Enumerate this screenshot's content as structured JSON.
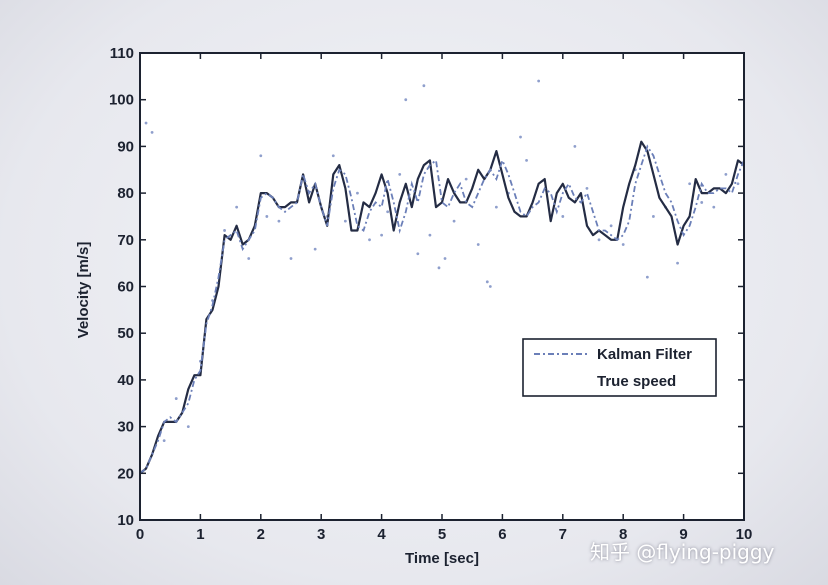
{
  "watermark": "知乎 @flying-piggy",
  "chart_data": {
    "type": "line",
    "title": "",
    "xlabel": "Time [sec]",
    "ylabel": "Velocity [m/s]",
    "xlim": [
      0,
      10
    ],
    "ylim": [
      10,
      110
    ],
    "xticks": [
      0,
      1,
      2,
      3,
      4,
      5,
      6,
      7,
      8,
      9,
      10
    ],
    "yticks": [
      10,
      20,
      30,
      40,
      50,
      60,
      70,
      80,
      90,
      100,
      110
    ],
    "grid": false,
    "legend_position": "center-right",
    "colors": {
      "kalman": "#6b7fb8",
      "true_speed": "#242c44",
      "measurements": "#8f9fcc",
      "frame": "#1c2230"
    },
    "series": [
      {
        "name": "Kalman Filter",
        "style": "dash-dot",
        "x": [
          0,
          0.1,
          0.2,
          0.3,
          0.4,
          0.5,
          0.6,
          0.7,
          0.8,
          0.9,
          1.0,
          1.1,
          1.2,
          1.3,
          1.4,
          1.5,
          1.6,
          1.7,
          1.8,
          1.9,
          2.0,
          2.1,
          2.2,
          2.3,
          2.4,
          2.5,
          2.6,
          2.7,
          2.8,
          2.9,
          3.0,
          3.1,
          3.2,
          3.3,
          3.4,
          3.5,
          3.6,
          3.7,
          3.8,
          3.9,
          4.0,
          4.1,
          4.2,
          4.3,
          4.4,
          4.5,
          4.6,
          4.7,
          4.8,
          4.9,
          5.0,
          5.1,
          5.2,
          5.3,
          5.4,
          5.5,
          5.6,
          5.7,
          5.8,
          5.9,
          6.0,
          6.1,
          6.2,
          6.3,
          6.4,
          6.5,
          6.6,
          6.7,
          6.8,
          6.9,
          7.0,
          7.1,
          7.2,
          7.3,
          7.4,
          7.5,
          7.6,
          7.7,
          7.8,
          7.9,
          8.0,
          8.1,
          8.2,
          8.3,
          8.4,
          8.5,
          8.6,
          8.7,
          8.8,
          8.9,
          9.0,
          9.1,
          9.2,
          9.3,
          9.4,
          9.5,
          9.6,
          9.7,
          9.8,
          9.9,
          10.0
        ],
        "y": [
          20,
          21,
          24,
          27,
          31,
          32,
          31,
          33,
          35,
          40,
          42,
          52,
          56,
          62,
          70,
          71,
          72,
          68,
          70,
          72,
          79,
          80,
          79,
          77,
          76,
          77,
          78,
          84,
          80,
          82,
          77,
          73,
          81,
          85,
          84,
          79,
          73,
          72,
          76,
          78,
          77,
          83,
          78,
          72,
          76,
          82,
          78,
          84,
          86,
          87,
          78,
          77,
          80,
          82,
          78,
          77,
          80,
          83,
          85,
          83,
          87,
          84,
          80,
          76,
          75,
          77,
          78,
          81,
          80,
          76,
          80,
          82,
          79,
          78,
          80,
          76,
          72,
          72,
          71,
          70,
          71,
          74,
          82,
          86,
          90,
          88,
          84,
          80,
          78,
          74,
          71,
          73,
          77,
          82,
          80,
          80,
          81,
          81,
          80,
          84,
          87
        ]
      },
      {
        "name": "True speed",
        "style": "solid",
        "x": [
          0,
          0.1,
          0.2,
          0.3,
          0.4,
          0.5,
          0.6,
          0.7,
          0.8,
          0.9,
          1.0,
          1.1,
          1.2,
          1.3,
          1.4,
          1.5,
          1.6,
          1.7,
          1.8,
          1.9,
          2.0,
          2.1,
          2.2,
          2.3,
          2.4,
          2.5,
          2.6,
          2.7,
          2.8,
          2.9,
          3.0,
          3.1,
          3.2,
          3.3,
          3.4,
          3.5,
          3.6,
          3.7,
          3.8,
          3.9,
          4.0,
          4.1,
          4.2,
          4.3,
          4.4,
          4.5,
          4.6,
          4.7,
          4.8,
          4.9,
          5.0,
          5.1,
          5.2,
          5.3,
          5.4,
          5.5,
          5.6,
          5.7,
          5.8,
          5.9,
          6.0,
          6.1,
          6.2,
          6.3,
          6.4,
          6.5,
          6.6,
          6.7,
          6.8,
          6.9,
          7.0,
          7.1,
          7.2,
          7.3,
          7.4,
          7.5,
          7.6,
          7.7,
          7.8,
          7.9,
          8.0,
          8.1,
          8.2,
          8.3,
          8.4,
          8.5,
          8.6,
          8.7,
          8.8,
          8.9,
          9.0,
          9.1,
          9.2,
          9.3,
          9.4,
          9.5,
          9.6,
          9.7,
          9.8,
          9.9,
          10.0
        ],
        "y": [
          20,
          21,
          24,
          28,
          31,
          31,
          31,
          33,
          38,
          41,
          41,
          53,
          55,
          60,
          71,
          70,
          73,
          69,
          70,
          73,
          80,
          80,
          79,
          77,
          77,
          78,
          78,
          84,
          78,
          82,
          77,
          73,
          84,
          86,
          81,
          72,
          72,
          78,
          77,
          80,
          84,
          80,
          72,
          78,
          82,
          77,
          83,
          86,
          87,
          77,
          78,
          83,
          80,
          78,
          78,
          81,
          85,
          83,
          85,
          89,
          84,
          79,
          76,
          75,
          75,
          78,
          82,
          83,
          74,
          80,
          82,
          79,
          78,
          80,
          73,
          71,
          72,
          71,
          70,
          70,
          77,
          82,
          86,
          91,
          89,
          84,
          79,
          77,
          75,
          69,
          73,
          75,
          83,
          80,
          80,
          81,
          81,
          80,
          82,
          87,
          86
        ]
      },
      {
        "name": "",
        "style": "dots",
        "x": [
          0.1,
          0.2,
          0.4,
          0.6,
          0.8,
          1.0,
          1.2,
          1.4,
          1.6,
          1.8,
          2.0,
          2.1,
          2.3,
          2.5,
          2.7,
          2.9,
          3.1,
          3.2,
          3.4,
          3.6,
          3.8,
          4.0,
          4.1,
          4.3,
          4.4,
          4.6,
          4.7,
          4.8,
          4.95,
          5.05,
          5.2,
          5.4,
          5.6,
          5.75,
          5.8,
          5.9,
          6.1,
          6.3,
          6.4,
          6.6,
          6.8,
          7.0,
          7.2,
          7.4,
          7.6,
          7.8,
          8.0,
          8.2,
          8.4,
          8.5,
          8.7,
          8.9,
          9.1,
          9.3,
          9.5,
          9.7,
          9.9
        ],
        "y": [
          95,
          93,
          27,
          36,
          30,
          44,
          57,
          72,
          77,
          66,
          88,
          75,
          74,
          66,
          83,
          68,
          75,
          88,
          74,
          80,
          70,
          71,
          76,
          84,
          100,
          67,
          103,
          71,
          64,
          66,
          74,
          83,
          69,
          61,
          60,
          77,
          80,
          92,
          87,
          104,
          75,
          75,
          90,
          81,
          70,
          73,
          69,
          85,
          62,
          75,
          77,
          65,
          82,
          78,
          77,
          84,
          82
        ]
      }
    ]
  }
}
